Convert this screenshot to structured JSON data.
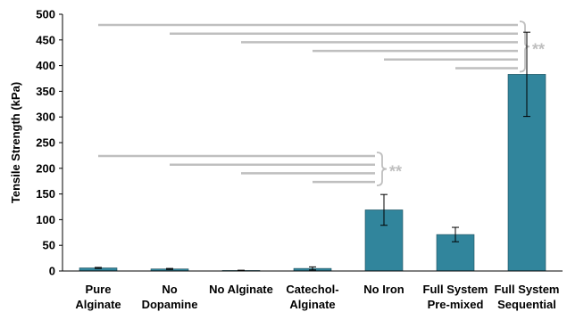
{
  "chart_data": {
    "type": "bar",
    "title": "",
    "xlabel": "",
    "ylabel": "Tensile Strength (kPa)",
    "ylim": [
      0,
      500
    ],
    "yticks": [
      0,
      50,
      100,
      150,
      200,
      250,
      300,
      350,
      400,
      450,
      500
    ],
    "grid": false,
    "categories": [
      [
        "Pure",
        "Alginate"
      ],
      [
        "No",
        "Dopamine"
      ],
      [
        "No Alginate"
      ],
      [
        "Catechol-",
        "Alginate"
      ],
      [
        "No Iron"
      ],
      [
        "Full System",
        "Pre-mixed"
      ],
      [
        "Full System",
        "Sequential"
      ]
    ],
    "values": [
      6,
      4,
      1,
      5,
      119,
      71,
      383
    ],
    "errors": [
      1,
      1,
      0.5,
      3,
      30,
      14,
      82
    ],
    "bar_color": "#31859c",
    "significance_groups": [
      {
        "label": "**",
        "target_category_index": 6,
        "from_category_indices": [
          0,
          1,
          2,
          3,
          4,
          5
        ],
        "color": "#bfbfbf"
      },
      {
        "label": "**",
        "target_category_index": 4,
        "from_category_indices": [
          0,
          1,
          2,
          3
        ],
        "color": "#bfbfbf"
      }
    ]
  }
}
